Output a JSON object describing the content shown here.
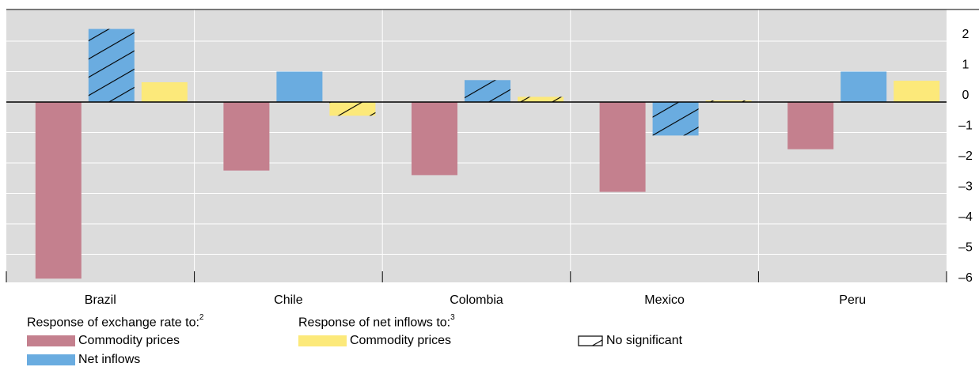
{
  "chart_data": {
    "type": "bar",
    "categories": [
      "Brazil",
      "Chile",
      "Colombia",
      "Mexico",
      "Peru"
    ],
    "series": [
      {
        "name": "Commodity prices",
        "group": "exchange_rate",
        "color": "#c4808e",
        "values": [
          -5.8,
          -2.25,
          -2.4,
          -2.95,
          -1.55
        ],
        "significant": [
          true,
          true,
          true,
          true,
          true
        ]
      },
      {
        "name": "Net inflows",
        "group": "exchange_rate",
        "color": "#6aace0",
        "values": [
          2.4,
          1.0,
          0.72,
          -1.1,
          1.0
        ],
        "significant": [
          false,
          true,
          false,
          false,
          true
        ]
      },
      {
        "name": "Commodity prices",
        "group": "net_inflows",
        "color": "#fce97a",
        "values": [
          0.65,
          -0.45,
          0.17,
          0.05,
          0.7
        ],
        "significant": [
          true,
          false,
          false,
          false,
          true
        ]
      }
    ],
    "ylim": [
      -6,
      2.6
    ],
    "yticks": [
      2,
      1,
      0,
      -1,
      -2,
      -3,
      -4,
      -5,
      -6
    ],
    "ytick_labels": [
      "2",
      "1",
      "0",
      "–1",
      "–2",
      "–3",
      "–4",
      "–5",
      "–6"
    ],
    "y_axis_side": "right",
    "grid": true,
    "legend_placement": "bottom"
  },
  "legend": {
    "exchange_rate_heading": "Response of exchange rate to:",
    "exchange_rate_note": "2",
    "net_inflows_heading": "Response of net inflows to:",
    "net_inflows_note": "3",
    "exchange_commodity": "Commodity prices",
    "exchange_inflows": "Net inflows",
    "inflows_commodity": "Commodity prices",
    "not_significant": "No significant"
  },
  "colors": {
    "plot_background": "#dcdcdc",
    "grid": "#ffffff",
    "hatch": "#000000"
  }
}
